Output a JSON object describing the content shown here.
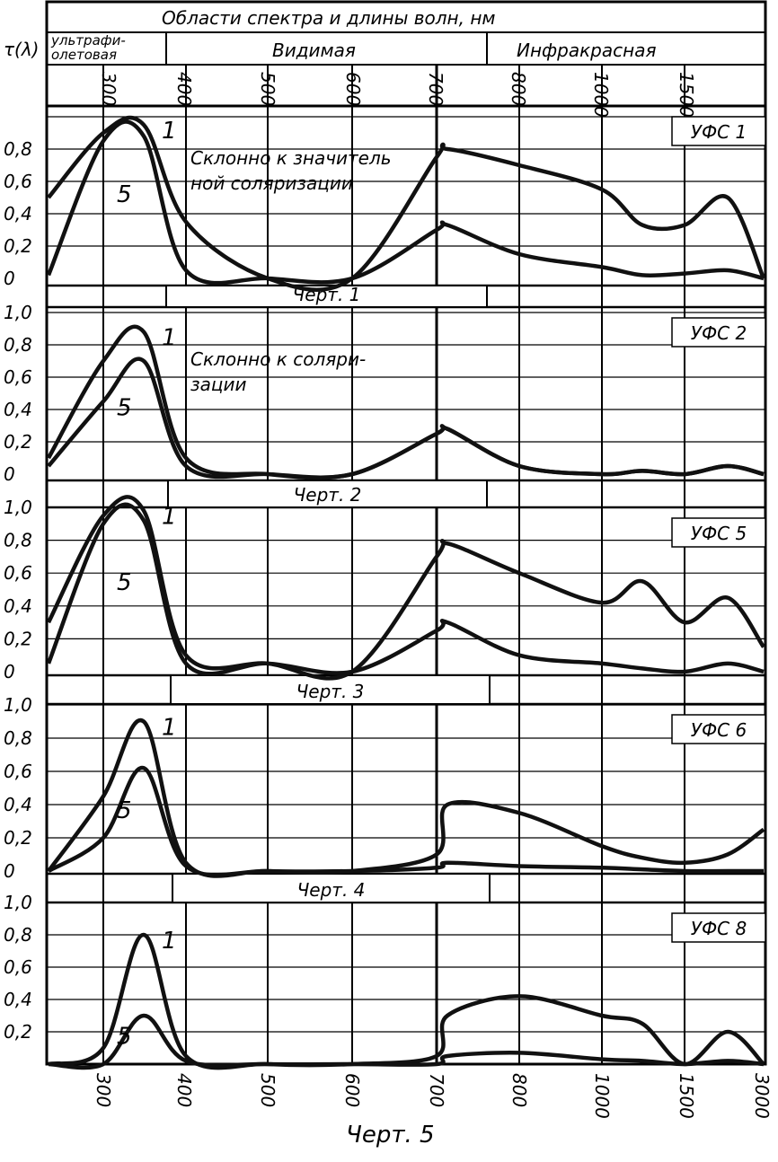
{
  "header": {
    "ylabel": "τ(λ)",
    "title": "Области спектра и длины волн,   нм",
    "regions": [
      "ультрафи-",
      "олетовая",
      "Видимая",
      "Инфракрасная"
    ]
  },
  "wavelength_ticks": [
    "300",
    "400",
    "500",
    "600",
    "700",
    "800",
    "1000",
    "1500"
  ],
  "bottom_ticks": [
    "300",
    "400",
    "500",
    "600",
    "700",
    "800",
    "1000",
    "1500",
    "3000"
  ],
  "figure_caption": "Черт. 5",
  "chart_data": [
    {
      "type": "line",
      "title": "УФС 1",
      "caption": "Черт. 1",
      "note": [
        "Склонно к значитель",
        "ной соляризации"
      ],
      "x": [
        "270",
        "300",
        "350",
        "400",
        "500",
        "600",
        "700",
        "720",
        "800",
        "1000",
        "1200",
        "1500",
        "2000",
        "3000"
      ],
      "ylim": [
        0,
        1.0
      ],
      "yticks": [
        "0",
        "0,2",
        "0,4",
        "0,6",
        "0,8"
      ],
      "series": [
        {
          "name": "1",
          "values": [
            0.5,
            0.9,
            0.95,
            0.35,
            0.0,
            0.0,
            0.75,
            0.8,
            0.7,
            0.55,
            0.33,
            0.33,
            0.5,
            0.0
          ]
        },
        {
          "name": "5",
          "values": [
            0.02,
            0.85,
            0.88,
            0.05,
            0.0,
            0.0,
            0.3,
            0.33,
            0.15,
            0.07,
            0.02,
            0.03,
            0.05,
            0.0
          ]
        }
      ]
    },
    {
      "type": "line",
      "title": "УФС 2",
      "caption": "Черт. 2",
      "note": [
        "Склонно к соляри-",
        "зации"
      ],
      "x": [
        "270",
        "300",
        "350",
        "400",
        "500",
        "600",
        "700",
        "720",
        "800",
        "1000",
        "1200",
        "1500",
        "2000",
        "3000"
      ],
      "ylim": [
        0,
        1.0
      ],
      "yticks": [
        "0",
        "0,2",
        "0,4",
        "0,6",
        "0,8",
        "1,0"
      ],
      "series": [
        {
          "name": "1",
          "values": [
            0.1,
            0.7,
            0.88,
            0.1,
            0.0,
            0.0,
            0.25,
            0.28,
            0.05,
            0.0,
            0.02,
            0.0,
            0.05,
            0.0
          ]
        },
        {
          "name": "5",
          "values": [
            0.05,
            0.45,
            0.7,
            0.05,
            0.0,
            0.0,
            0.25,
            0.28,
            0.05,
            0.0,
            0.02,
            0.0,
            0.05,
            0.0
          ]
        }
      ]
    },
    {
      "type": "line",
      "title": "УФС 5",
      "caption": "Черт. 3",
      "x": [
        "270",
        "300",
        "350",
        "400",
        "500",
        "600",
        "700",
        "720",
        "800",
        "1000",
        "1200",
        "1500",
        "2000",
        "3000"
      ],
      "ylim": [
        0,
        1.0
      ],
      "yticks": [
        "0",
        "0,2",
        "0,4",
        "0,6",
        "0,8",
        "1,0"
      ],
      "series": [
        {
          "name": "1",
          "values": [
            0.3,
            0.95,
            0.98,
            0.1,
            0.05,
            0.0,
            0.7,
            0.78,
            0.6,
            0.42,
            0.55,
            0.3,
            0.45,
            0.15
          ]
        },
        {
          "name": "5",
          "values": [
            0.05,
            0.9,
            0.92,
            0.05,
            0.05,
            0.0,
            0.25,
            0.3,
            0.1,
            0.05,
            0.02,
            0.0,
            0.05,
            0.0
          ]
        }
      ]
    },
    {
      "type": "line",
      "title": "УФС 6",
      "caption": "Черт. 4",
      "x": [
        "270",
        "300",
        "350",
        "400",
        "500",
        "600",
        "700",
        "720",
        "800",
        "1000",
        "1200",
        "1500",
        "2000",
        "3000"
      ],
      "ylim": [
        0,
        1.0
      ],
      "yticks": [
        "0",
        "0,2",
        "0,4",
        "0,6",
        "0,8",
        "1,0"
      ],
      "series": [
        {
          "name": "1",
          "values": [
            0.0,
            0.45,
            0.9,
            0.05,
            0.0,
            0.0,
            0.1,
            0.4,
            0.35,
            0.15,
            0.08,
            0.05,
            0.1,
            0.25
          ]
        },
        {
          "name": "5",
          "values": [
            0.0,
            0.2,
            0.62,
            0.03,
            0.0,
            0.0,
            0.02,
            0.05,
            0.03,
            0.02,
            0.01,
            0.0,
            0.0,
            0.0
          ]
        }
      ]
    },
    {
      "type": "line",
      "title": "УФС 8",
      "x": [
        "270",
        "300",
        "350",
        "400",
        "500",
        "600",
        "700",
        "720",
        "800",
        "1000",
        "1200",
        "1500",
        "2000",
        "3000"
      ],
      "ylim": [
        0,
        1.0
      ],
      "yticks": [
        "0,2",
        "0,4",
        "0,6",
        "0,8",
        "1,0"
      ],
      "series": [
        {
          "name": "1",
          "values": [
            0.0,
            0.1,
            0.8,
            0.05,
            0.0,
            0.0,
            0.05,
            0.3,
            0.42,
            0.3,
            0.25,
            0.0,
            0.2,
            0.0
          ]
        },
        {
          "name": "5",
          "values": [
            0.0,
            0.0,
            0.3,
            0.02,
            0.0,
            0.0,
            0.0,
            0.05,
            0.07,
            0.03,
            0.02,
            0.0,
            0.02,
            0.0
          ]
        }
      ]
    }
  ]
}
